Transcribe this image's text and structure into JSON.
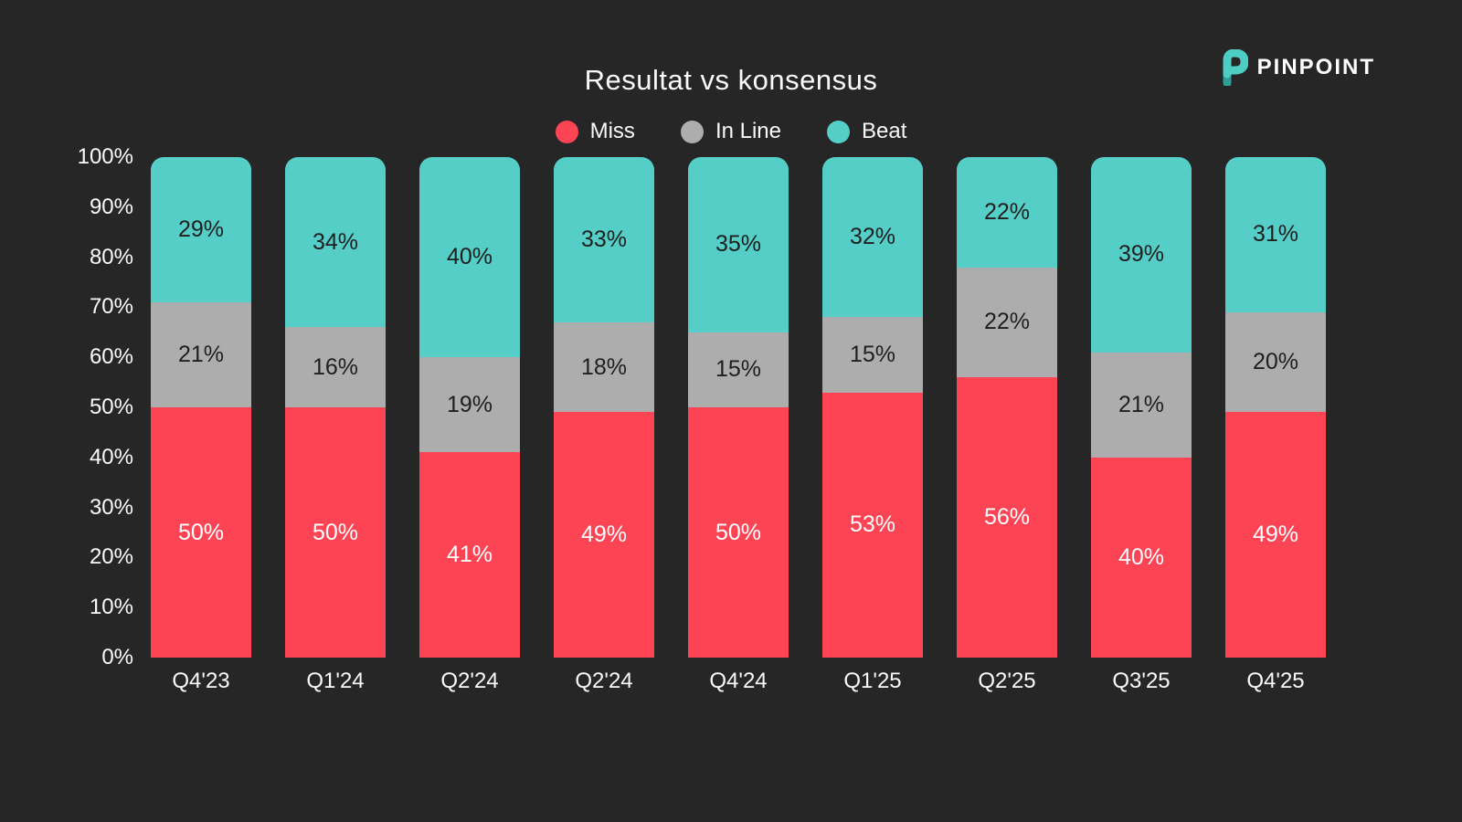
{
  "header": {
    "title": "Resultat vs konsensus",
    "brand": {
      "name": "PINPOINT",
      "icon": "pinpoint-p-logo",
      "icon_color": "#4ECDC4",
      "icon_shade_color": "#2E9E98"
    }
  },
  "colors": {
    "background": "#262626",
    "text_light": "#FAFAFA",
    "text_dark": "#1F1F1F"
  },
  "chart_data": {
    "type": "bar",
    "stacked": true,
    "title": "Resultat vs konsensus",
    "xlabel": "",
    "ylabel": "",
    "ylim": [
      0,
      100
    ],
    "grid": false,
    "legend_position": "top",
    "y_ticks": [
      "100%",
      "90%",
      "80%",
      "70%",
      "60%",
      "50%",
      "40%",
      "30%",
      "20%",
      "10%",
      "0%"
    ],
    "categories": [
      "Q4'23",
      "Q1'24",
      "Q2'24",
      "Q2'24",
      "Q4'24",
      "Q1'25",
      "Q2'25",
      "Q3'25",
      "Q4'25"
    ],
    "series": [
      {
        "name": "Miss",
        "color": "#FC4455",
        "label_color": "#FFFFFF",
        "values": [
          50,
          50,
          41,
          49,
          50,
          53,
          56,
          40,
          49
        ]
      },
      {
        "name": "In Line",
        "color": "#ADADAD",
        "label_color": "#1F1F1F",
        "values": [
          21,
          16,
          19,
          18,
          15,
          15,
          22,
          21,
          20
        ]
      },
      {
        "name": "Beat",
        "color": "#54CEC6",
        "label_color": "#1F1F1F",
        "values": [
          29,
          34,
          40,
          33,
          35,
          32,
          22,
          39,
          31
        ]
      }
    ],
    "value_suffix": "%"
  }
}
